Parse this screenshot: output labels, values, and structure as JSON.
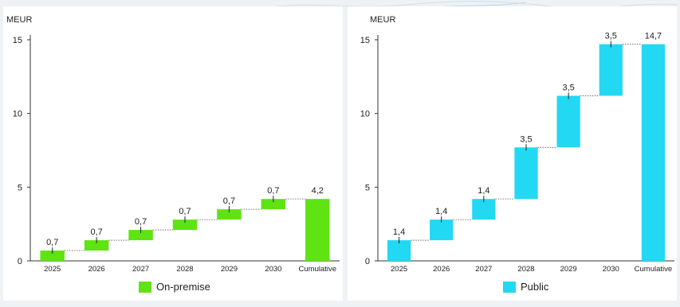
{
  "chart_data": [
    {
      "type": "bar",
      "subtype": "waterfall",
      "ylabel": "MEUR",
      "ylim": [
        0,
        15
      ],
      "yticks": [
        0,
        5,
        10,
        15
      ],
      "categories": [
        "2025",
        "2026",
        "2027",
        "2028",
        "2029",
        "2030",
        "Cumulative"
      ],
      "increments": [
        0.7,
        0.7,
        0.7,
        0.7,
        0.7,
        0.7
      ],
      "total": 4.2,
      "labels": [
        "0,7",
        "0,7",
        "0,7",
        "0,7",
        "0,7",
        "0,7",
        "4,2"
      ],
      "series": [
        {
          "name": "On-premise",
          "values": [
            0.7,
            0.7,
            0.7,
            0.7,
            0.7,
            0.7,
            4.2
          ]
        }
      ],
      "color": "#5fe313",
      "legend_position": "bottom-center"
    },
    {
      "type": "bar",
      "subtype": "waterfall",
      "ylabel": "MEUR",
      "ylim": [
        0,
        15
      ],
      "yticks": [
        0,
        5,
        10,
        15
      ],
      "categories": [
        "2025",
        "2026",
        "2027",
        "2028",
        "2029",
        "2030",
        "Cumulative"
      ],
      "increments": [
        1.4,
        1.4,
        1.4,
        3.5,
        3.5,
        3.5
      ],
      "total": 14.7,
      "labels": [
        "1,4",
        "1,4",
        "1,4",
        "3,5",
        "3,5",
        "3,5",
        "14,7"
      ],
      "series": [
        {
          "name": "Public",
          "values": [
            1.4,
            1.4,
            1.4,
            3.5,
            3.5,
            3.5,
            14.7
          ]
        }
      ],
      "color": "#22d8f2",
      "legend_position": "bottom-center"
    }
  ]
}
